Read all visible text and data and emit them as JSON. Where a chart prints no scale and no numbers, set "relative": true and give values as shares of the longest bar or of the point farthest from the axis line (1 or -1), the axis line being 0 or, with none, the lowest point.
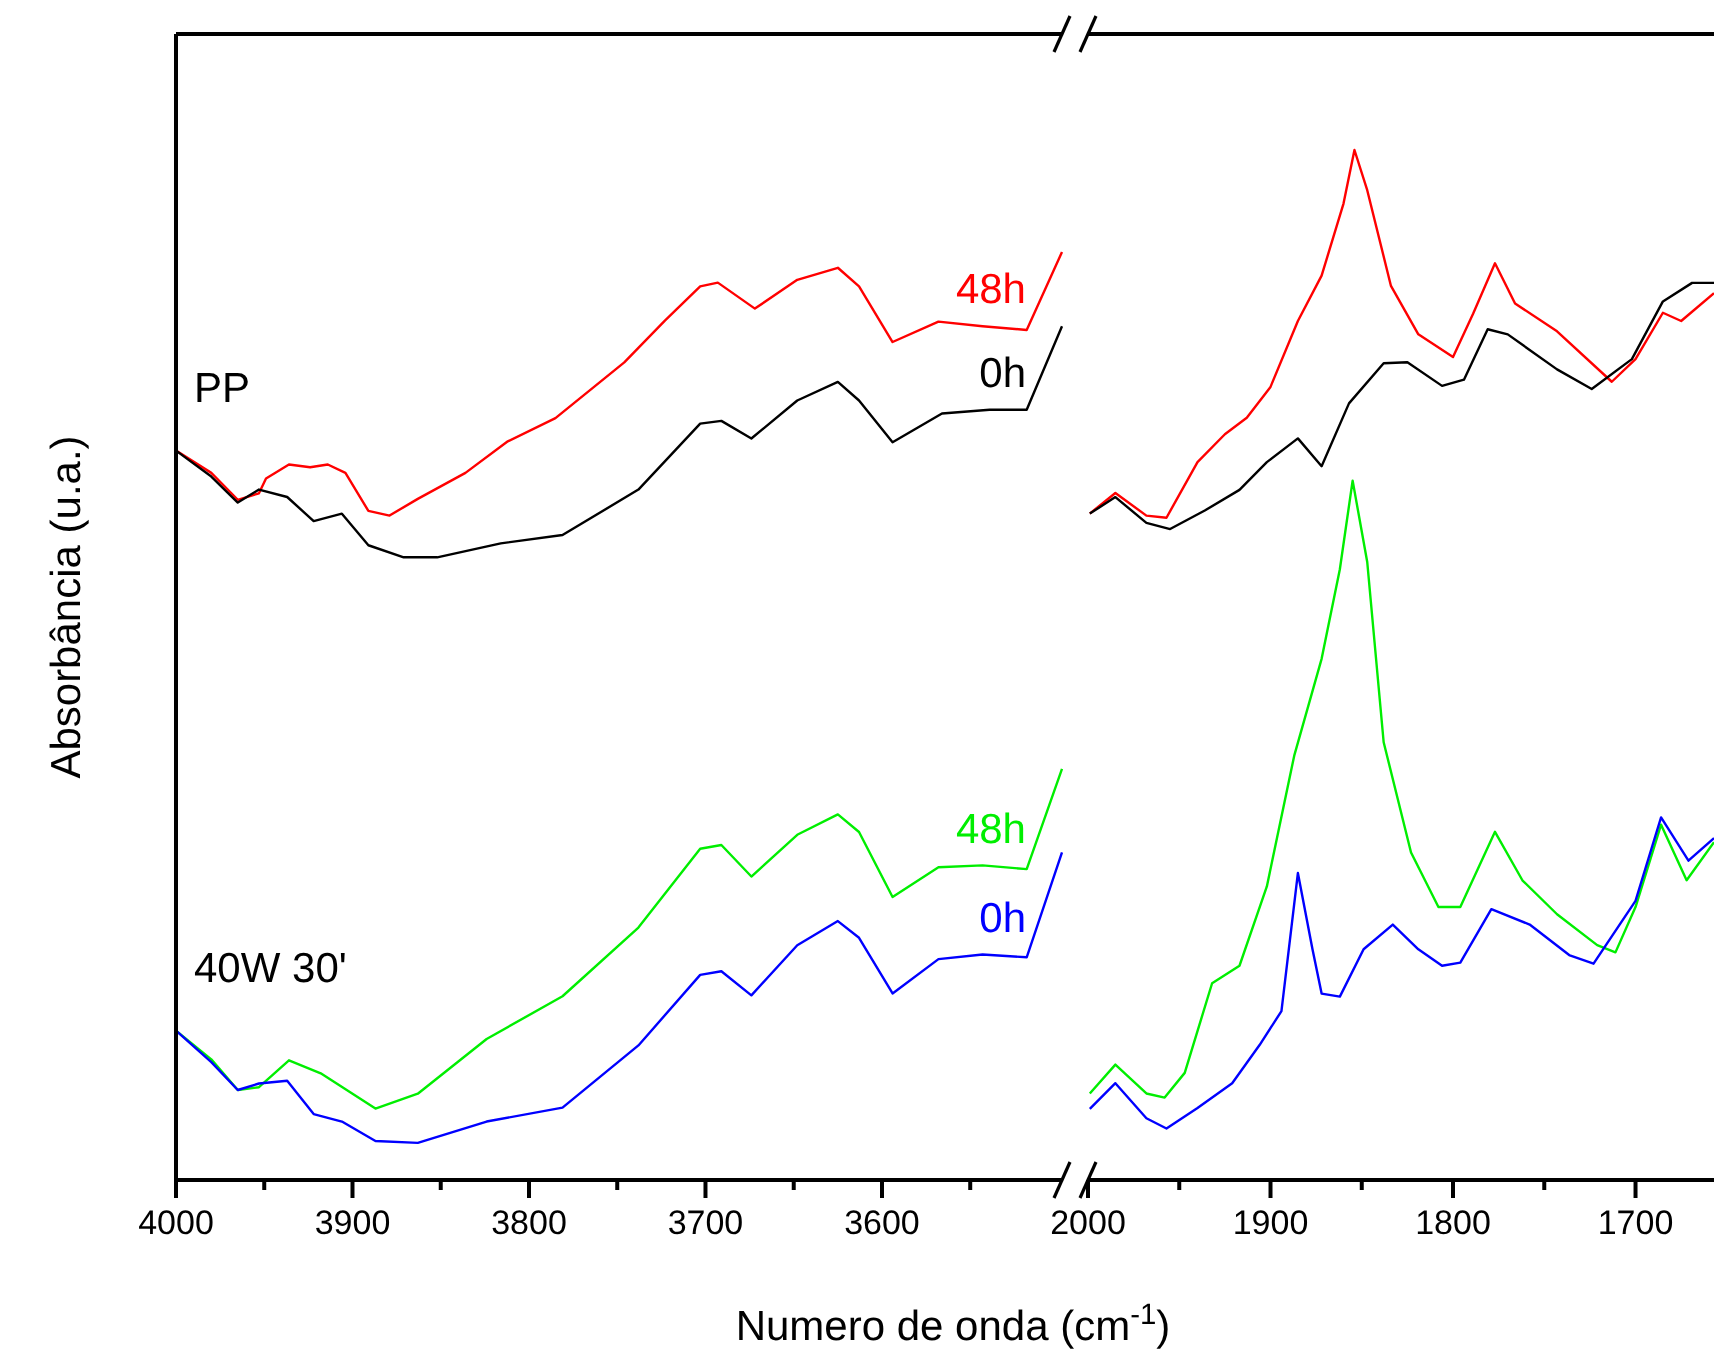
{
  "chart_data": [
    {
      "type": "line",
      "relative": true,
      "xlabel": "Numero de onda (cm$^{-1}$)",
      "ylabel": "Absorbância (u.a.)",
      "xlim": [
        4000,
        3498
      ],
      "xticks": [
        4000,
        {
          "value": 3950,
          "label": null
        },
        3900,
        {
          "value": 3850,
          "label": null
        },
        3800,
        {
          "value": 3750,
          "label": null
        },
        3700,
        {
          "value": 3650,
          "label": null
        },
        3600,
        {
          "value": 3550,
          "label": null
        }
      ],
      "tick_labels": "x",
      "annotations": [
        "PP",
        "40W 30'"
      ],
      "series": [
        {
          "name": "48h",
          "color": "#ff0000",
          "x": [
            4000,
            3980,
            3965,
            3953,
            3949,
            3936,
            3924,
            3914,
            3904,
            3891,
            3879,
            3863,
            3836,
            3812,
            3785,
            3746,
            3723,
            3703,
            3693,
            3672,
            3648,
            3625,
            3613,
            3594,
            3568,
            3543,
            3518,
            3498
          ],
          "values": [
            0.786,
            0.762,
            0.733,
            0.74,
            0.756,
            0.771,
            0.768,
            0.771,
            0.762,
            0.721,
            0.716,
            0.734,
            0.762,
            0.796,
            0.821,
            0.881,
            0.926,
            0.963,
            0.967,
            0.939,
            0.97,
            0.983,
            0.963,
            0.903,
            0.925,
            0.92,
            0.916,
            1
          ]
        },
        {
          "name": "0h",
          "color": "#000000",
          "x": [
            4000,
            3980,
            3965,
            3953,
            3937,
            3922,
            3906,
            3891,
            3871,
            3852,
            3816,
            3781,
            3738,
            3703,
            3691,
            3674,
            3648,
            3625,
            3613,
            3594,
            3566,
            3539,
            3518,
            3498
          ],
          "values": [
            0.786,
            0.758,
            0.73,
            0.744,
            0.736,
            0.71,
            0.718,
            0.684,
            0.671,
            0.671,
            0.686,
            0.695,
            0.744,
            0.815,
            0.818,
            0.799,
            0.84,
            0.86,
            0.84,
            0.795,
            0.826,
            0.83,
            0.83,
            0.92
          ]
        },
        {
          "name": "48h",
          "color": "#00ee00",
          "x": [
            4000,
            3980,
            3965,
            3953,
            3936,
            3918,
            3887,
            3863,
            3824,
            3781,
            3738,
            3703,
            3691,
            3674,
            3648,
            3625,
            3613,
            3594,
            3568,
            3543,
            3518,
            3498
          ],
          "values": [
            0.161,
            0.13,
            0.097,
            0.1,
            0.129,
            0.115,
            0.077,
            0.093,
            0.152,
            0.198,
            0.272,
            0.357,
            0.361,
            0.327,
            0.372,
            0.394,
            0.375,
            0.305,
            0.337,
            0.339,
            0.335,
            0.443
          ]
        },
        {
          "name": "0h",
          "color": "#0000ff",
          "x": [
            4000,
            3980,
            3965,
            3953,
            3937,
            3922,
            3906,
            3887,
            3863,
            3824,
            3781,
            3738,
            3703,
            3691,
            3674,
            3648,
            3625,
            3613,
            3594,
            3568,
            3543,
            3518,
            3498
          ],
          "values": [
            0.161,
            0.127,
            0.097,
            0.104,
            0.107,
            0.071,
            0.063,
            0.042,
            0.04,
            0.063,
            0.078,
            0.145,
            0.221,
            0.225,
            0.199,
            0.253,
            0.279,
            0.261,
            0.201,
            0.238,
            0.243,
            0.24,
            0.353
          ]
        }
      ]
    },
    {
      "type": "line",
      "relative": true,
      "xlim": [
        2000,
        1657
      ],
      "xticks": [
        2000,
        {
          "value": 1950,
          "label": null
        },
        1900,
        {
          "value": 1850,
          "label": null
        },
        1800,
        {
          "value": 1750,
          "label": null
        },
        1700
      ],
      "tick_labels": "x",
      "series": [
        {
          "color": "#ff0000",
          "x": [
            1999,
            1985,
            1968,
            1957,
            1940,
            1925,
            1913,
            1900,
            1885,
            1872,
            1860,
            1854,
            1847,
            1834,
            1819,
            1800,
            1789,
            1777,
            1766,
            1743,
            1713,
            1700,
            1685,
            1675,
            1657
          ],
          "values": [
            0.647,
            0.667,
            0.645,
            0.643,
            0.697,
            0.724,
            0.74,
            0.77,
            0.834,
            0.878,
            0.948,
            1,
            0.961,
            0.868,
            0.821,
            0.799,
            0.841,
            0.89,
            0.851,
            0.824,
            0.775,
            0.797,
            0.842,
            0.834,
            0.861
          ]
        },
        {
          "color": "#000000",
          "x": [
            1999,
            1985,
            1968,
            1955,
            1936,
            1917,
            1902,
            1885,
            1872,
            1857,
            1838,
            1825,
            1806,
            1794,
            1781,
            1770,
            1743,
            1724,
            1702,
            1685,
            1669,
            1657
          ],
          "values": [
            0.647,
            0.663,
            0.638,
            0.632,
            0.65,
            0.67,
            0.697,
            0.72,
            0.693,
            0.754,
            0.793,
            0.794,
            0.771,
            0.777,
            0.826,
            0.821,
            0.787,
            0.768,
            0.797,
            0.853,
            0.871,
            0.871
          ]
        },
        {
          "color": "#00ee00",
          "x": [
            1999,
            1985,
            1968,
            1958,
            1947,
            1932,
            1917,
            1902,
            1887,
            1872,
            1862,
            1855,
            1847,
            1838,
            1823,
            1808,
            1796,
            1777,
            1762,
            1743,
            1721,
            1711,
            1700,
            1686,
            1672,
            1657
          ],
          "values": [
            0.084,
            0.112,
            0.084,
            0.08,
            0.104,
            0.191,
            0.208,
            0.285,
            0.412,
            0.506,
            0.593,
            0.679,
            0.6,
            0.425,
            0.318,
            0.265,
            0.265,
            0.338,
            0.291,
            0.258,
            0.228,
            0.221,
            0.265,
            0.345,
            0.291,
            0.328
          ]
        },
        {
          "color": "#0000ff",
          "x": [
            1999,
            1985,
            1968,
            1957,
            1940,
            1921,
            1906,
            1894,
            1885,
            1877,
            1872,
            1862,
            1849,
            1833,
            1819,
            1806,
            1796,
            1779,
            1758,
            1736,
            1723,
            1700,
            1686,
            1671,
            1657
          ],
          "values": [
            0.069,
            0.094,
            0.06,
            0.05,
            0.07,
            0.094,
            0.131,
            0.164,
            0.298,
            0.224,
            0.181,
            0.178,
            0.224,
            0.248,
            0.224,
            0.208,
            0.211,
            0.263,
            0.248,
            0.218,
            0.21,
            0.271,
            0.352,
            0.31,
            0.332
          ]
        }
      ]
    }
  ]
}
